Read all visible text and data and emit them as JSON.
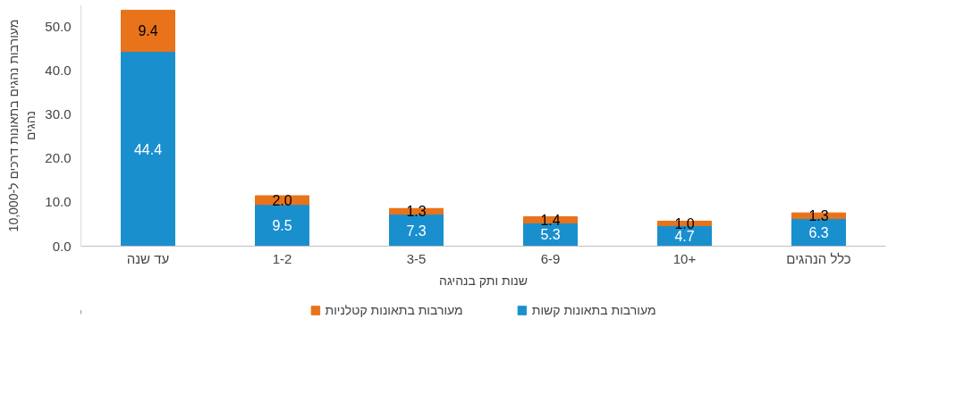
{
  "chart_data": {
    "type": "bar",
    "stacked": true,
    "xlabel": "שנות ותק בנהיגה",
    "ylabel": "מעורבות נהגים בתאונות דרכים ל-10,000 נהגים",
    "categories": [
      "עד שנה",
      "1-2",
      "3-5",
      "6-9",
      "10+",
      "כלל הנהגים"
    ],
    "series": [
      {
        "name": "מעורבות בתאונות קשות",
        "color": "#1a8fce",
        "values": [
          44.4,
          9.5,
          7.3,
          5.3,
          4.7,
          6.3
        ],
        "value_labels": [
          "44.4",
          "9.5",
          "7.3",
          "5.3",
          "4.7",
          "6.3"
        ]
      },
      {
        "name": "מעורבות בתאונות קטלניות",
        "color": "#e8731a",
        "values": [
          9.4,
          2.0,
          1.3,
          1.4,
          1.0,
          1.3
        ],
        "value_labels": [
          "9.4",
          "2.0",
          "1.3",
          "1.4",
          "1.0",
          "1.3"
        ]
      }
    ],
    "ylim": [
      0,
      55
    ],
    "yticks": [
      {
        "value": 0,
        "label": "0.0"
      },
      {
        "value": 10,
        "label": "10.0"
      },
      {
        "value": 20,
        "label": "20.0"
      },
      {
        "value": 30,
        "label": "30.0"
      },
      {
        "value": 40,
        "label": "40.0"
      },
      {
        "value": 50,
        "label": "50.0"
      }
    ],
    "grid": false,
    "legend": "bottom"
  }
}
